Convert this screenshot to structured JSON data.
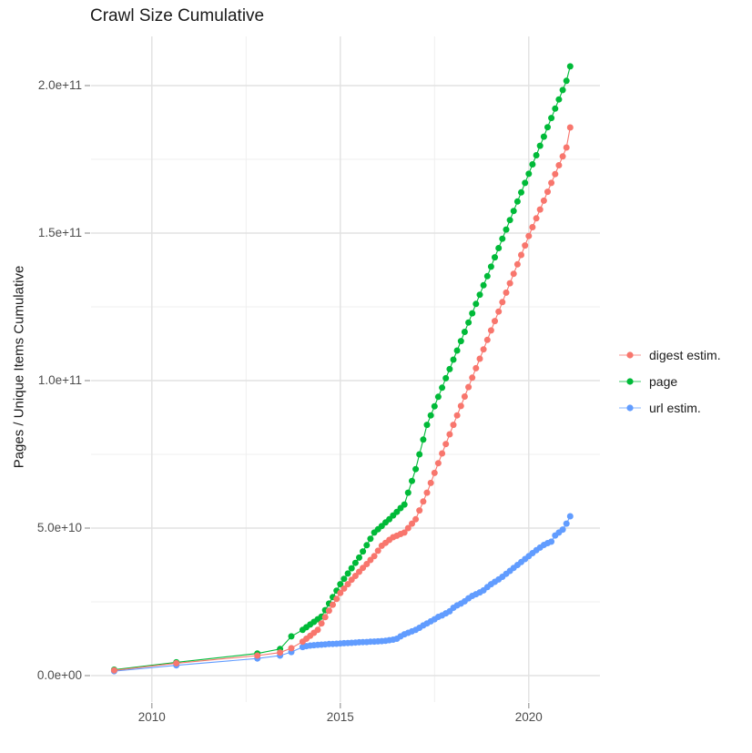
{
  "chart_data": {
    "type": "scatter",
    "title": "Crawl Size Cumulative",
    "xlabel": "",
    "ylabel": "Pages / Unique Items Cumulative",
    "legend_position": "right",
    "grid": true,
    "value_unit": 1000000000.0,
    "x_range": [
      2008.5,
      2021.6
    ],
    "ylim": [
      0,
      220000000000.0
    ],
    "x_ticks": [
      {
        "v": 2010,
        "label": "2010"
      },
      {
        "v": 2015,
        "label": "2015"
      },
      {
        "v": 2020,
        "label": "2020"
      }
    ],
    "x_minor": [
      2012.5,
      2017.5
    ],
    "y_ticks": [
      {
        "v": 0,
        "label": "0.0e+00"
      },
      {
        "v": 50,
        "label": "5.0e+10"
      },
      {
        "v": 100,
        "label": "1.0e+11"
      },
      {
        "v": 150,
        "label": "1.5e+11"
      },
      {
        "v": 200,
        "label": "2.0e+11"
      }
    ],
    "y_minor": [
      25,
      75,
      125,
      175
    ],
    "colors": {
      "digest": "#F8766D",
      "page": "#00BA38",
      "url": "#619CFF"
    },
    "series": [
      {
        "name": "digest estim.",
        "color": "#F8766D",
        "points": [
          [
            2009,
            1.8
          ],
          [
            2010.65,
            4.2
          ],
          [
            2012.8,
            6.8
          ],
          [
            2013.4,
            7.8
          ],
          [
            2013.7,
            9.3
          ],
          [
            2014,
            11.5
          ],
          [
            2014.1,
            12.5
          ],
          [
            2014.2,
            13.5
          ],
          [
            2014.3,
            14.5
          ],
          [
            2014.4,
            15.5
          ],
          [
            2014.5,
            17.7
          ],
          [
            2014.6,
            19.8
          ],
          [
            2014.7,
            22
          ],
          [
            2014.8,
            24
          ],
          [
            2014.9,
            26
          ],
          [
            2015,
            28
          ],
          [
            2015.1,
            29.5
          ],
          [
            2015.2,
            31
          ],
          [
            2015.3,
            32.5
          ],
          [
            2015.4,
            33.8
          ],
          [
            2015.5,
            35.2
          ],
          [
            2015.6,
            36.5
          ],
          [
            2015.7,
            37.8
          ],
          [
            2015.8,
            39.2
          ],
          [
            2015.9,
            40.5
          ],
          [
            2016,
            42.3
          ],
          [
            2016.1,
            44
          ],
          [
            2016.2,
            45
          ],
          [
            2016.3,
            46
          ],
          [
            2016.4,
            46.9
          ],
          [
            2016.5,
            47.4
          ],
          [
            2016.6,
            48
          ],
          [
            2016.7,
            48.5
          ],
          [
            2016.8,
            50
          ],
          [
            2016.9,
            51.5
          ],
          [
            2017,
            53
          ],
          [
            2017.1,
            56
          ],
          [
            2017.2,
            59
          ],
          [
            2017.3,
            62
          ],
          [
            2017.4,
            65.3
          ],
          [
            2017.5,
            68.7
          ],
          [
            2017.6,
            72
          ],
          [
            2017.7,
            75.3
          ],
          [
            2017.8,
            78.5
          ],
          [
            2017.9,
            81.8
          ],
          [
            2018,
            85
          ],
          [
            2018.1,
            88.2
          ],
          [
            2018.2,
            91.4
          ],
          [
            2018.3,
            94.6
          ],
          [
            2018.4,
            97.8
          ],
          [
            2018.5,
            101
          ],
          [
            2018.6,
            104.2
          ],
          [
            2018.7,
            107.4
          ],
          [
            2018.8,
            110.6
          ],
          [
            2018.9,
            113.8
          ],
          [
            2019,
            117
          ],
          [
            2019.1,
            120.2
          ],
          [
            2019.2,
            123.4
          ],
          [
            2019.3,
            126.6
          ],
          [
            2019.4,
            129.8
          ],
          [
            2019.5,
            133
          ],
          [
            2019.6,
            136.2
          ],
          [
            2019.7,
            139.4
          ],
          [
            2019.8,
            142.6
          ],
          [
            2019.9,
            145.8
          ],
          [
            2020,
            149
          ],
          [
            2020.1,
            152
          ],
          [
            2020.2,
            155
          ],
          [
            2020.3,
            158
          ],
          [
            2020.4,
            161
          ],
          [
            2020.5,
            164
          ],
          [
            2020.6,
            167
          ],
          [
            2020.7,
            170
          ],
          [
            2020.8,
            173
          ],
          [
            2020.9,
            176
          ],
          [
            2021,
            179
          ],
          [
            2021.1,
            185.8
          ]
        ]
      },
      {
        "name": "page",
        "color": "#00BA38",
        "points": [
          [
            2009,
            2
          ],
          [
            2010.65,
            4.5
          ],
          [
            2012.8,
            7.5
          ],
          [
            2013.4,
            9
          ],
          [
            2013.7,
            13.3
          ],
          [
            2014,
            15.5
          ],
          [
            2014.1,
            16.4
          ],
          [
            2014.2,
            17.3
          ],
          [
            2014.3,
            18.2
          ],
          [
            2014.4,
            19.1
          ],
          [
            2014.5,
            20
          ],
          [
            2014.6,
            22.2
          ],
          [
            2014.7,
            24.4
          ],
          [
            2014.8,
            26.6
          ],
          [
            2014.9,
            28.8
          ],
          [
            2015,
            31
          ],
          [
            2015.1,
            32.8
          ],
          [
            2015.2,
            34.6
          ],
          [
            2015.3,
            36.4
          ],
          [
            2015.4,
            38.2
          ],
          [
            2015.5,
            40
          ],
          [
            2015.6,
            42.1
          ],
          [
            2015.7,
            44.2
          ],
          [
            2015.8,
            46.4
          ],
          [
            2015.9,
            48.5
          ],
          [
            2016,
            49.6
          ],
          [
            2016.1,
            50.7
          ],
          [
            2016.2,
            51.9
          ],
          [
            2016.3,
            53
          ],
          [
            2016.4,
            54.3
          ],
          [
            2016.5,
            55.5
          ],
          [
            2016.6,
            56.8
          ],
          [
            2016.7,
            58
          ],
          [
            2016.8,
            62
          ],
          [
            2016.9,
            66
          ],
          [
            2017,
            70
          ],
          [
            2017.1,
            75
          ],
          [
            2017.2,
            80
          ],
          [
            2017.3,
            85
          ],
          [
            2017.4,
            88.2
          ],
          [
            2017.5,
            91.3
          ],
          [
            2017.6,
            94.5
          ],
          [
            2017.7,
            97.6
          ],
          [
            2017.8,
            100.8
          ],
          [
            2017.9,
            103.9
          ],
          [
            2018,
            107.1
          ],
          [
            2018.1,
            110.2
          ],
          [
            2018.2,
            113.4
          ],
          [
            2018.3,
            116.5
          ],
          [
            2018.4,
            119.7
          ],
          [
            2018.5,
            122.8
          ],
          [
            2018.6,
            126
          ],
          [
            2018.7,
            129.1
          ],
          [
            2018.8,
            132.3
          ],
          [
            2018.9,
            135.4
          ],
          [
            2019,
            138.6
          ],
          [
            2019.1,
            141.8
          ],
          [
            2019.2,
            144.9
          ],
          [
            2019.3,
            148.1
          ],
          [
            2019.4,
            151.2
          ],
          [
            2019.5,
            154.4
          ],
          [
            2019.6,
            157.5
          ],
          [
            2019.7,
            160.7
          ],
          [
            2019.8,
            163.8
          ],
          [
            2019.9,
            167
          ],
          [
            2020,
            170.1
          ],
          [
            2020.1,
            173.3
          ],
          [
            2020.2,
            176.4
          ],
          [
            2020.3,
            179.6
          ],
          [
            2020.4,
            182.7
          ],
          [
            2020.5,
            185.9
          ],
          [
            2020.6,
            189
          ],
          [
            2020.7,
            192.2
          ],
          [
            2020.8,
            195.3
          ],
          [
            2020.9,
            198.5
          ],
          [
            2021,
            201.6
          ],
          [
            2021.1,
            206.5
          ]
        ]
      },
      {
        "name": "url estim.",
        "color": "#619CFF",
        "points": [
          [
            2009,
            1.5
          ],
          [
            2010.65,
            3.5
          ],
          [
            2012.8,
            5.8
          ],
          [
            2013.4,
            6.8
          ],
          [
            2013.7,
            8
          ],
          [
            2014,
            9.7
          ],
          [
            2014.1,
            10
          ],
          [
            2014.2,
            10.2
          ],
          [
            2014.3,
            10.3
          ],
          [
            2014.4,
            10.4
          ],
          [
            2014.5,
            10.5
          ],
          [
            2014.6,
            10.6
          ],
          [
            2014.7,
            10.7
          ],
          [
            2014.8,
            10.75
          ],
          [
            2014.9,
            10.8
          ],
          [
            2015,
            10.9
          ],
          [
            2015.1,
            11
          ],
          [
            2015.2,
            11.05
          ],
          [
            2015.3,
            11.1
          ],
          [
            2015.4,
            11.2
          ],
          [
            2015.5,
            11.3
          ],
          [
            2015.6,
            11.35
          ],
          [
            2015.7,
            11.4
          ],
          [
            2015.8,
            11.5
          ],
          [
            2015.9,
            11.55
          ],
          [
            2016,
            11.6
          ],
          [
            2016.1,
            11.7
          ],
          [
            2016.2,
            11.8
          ],
          [
            2016.3,
            12
          ],
          [
            2016.4,
            12.2
          ],
          [
            2016.5,
            12.5
          ],
          [
            2016.6,
            13.3
          ],
          [
            2016.7,
            14
          ],
          [
            2016.8,
            14.5
          ],
          [
            2016.9,
            15
          ],
          [
            2017,
            15.5
          ],
          [
            2017.1,
            16.2
          ],
          [
            2017.2,
            17
          ],
          [
            2017.3,
            17.7
          ],
          [
            2017.4,
            18.4
          ],
          [
            2017.5,
            19.1
          ],
          [
            2017.6,
            19.9
          ],
          [
            2017.7,
            20.4
          ],
          [
            2017.8,
            21.1
          ],
          [
            2017.9,
            21.8
          ],
          [
            2018,
            23
          ],
          [
            2018.1,
            23.8
          ],
          [
            2018.2,
            24.4
          ],
          [
            2018.3,
            25.2
          ],
          [
            2018.4,
            26.2
          ],
          [
            2018.5,
            27
          ],
          [
            2018.6,
            27.6
          ],
          [
            2018.7,
            28.2
          ],
          [
            2018.8,
            28.9
          ],
          [
            2018.9,
            30
          ],
          [
            2019,
            31
          ],
          [
            2019.1,
            31.8
          ],
          [
            2019.2,
            32.6
          ],
          [
            2019.3,
            33.5
          ],
          [
            2019.4,
            34.5
          ],
          [
            2019.5,
            35.5
          ],
          [
            2019.6,
            36.5
          ],
          [
            2019.7,
            37.5
          ],
          [
            2019.8,
            38.5
          ],
          [
            2019.9,
            39.5
          ],
          [
            2020,
            40.5
          ],
          [
            2020.1,
            41.5
          ],
          [
            2020.2,
            42.5
          ],
          [
            2020.3,
            43.4
          ],
          [
            2020.4,
            44.3
          ],
          [
            2020.5,
            44.9
          ],
          [
            2020.6,
            45.4
          ],
          [
            2020.7,
            47.5
          ],
          [
            2020.8,
            48.5
          ],
          [
            2020.9,
            49.5
          ],
          [
            2021,
            51.5
          ],
          [
            2021.1,
            54
          ]
        ]
      }
    ]
  }
}
